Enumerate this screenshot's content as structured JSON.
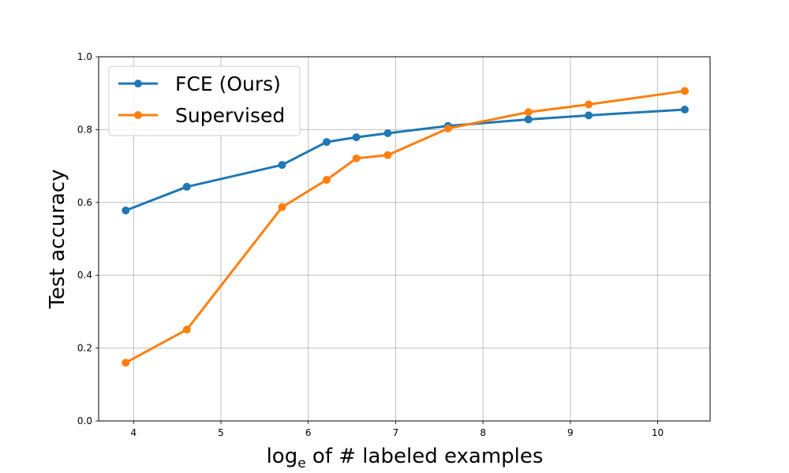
{
  "chart_data": {
    "type": "line",
    "title": "",
    "xlabel_main": "log",
    "xlabel_sub": "e",
    "xlabel_rest": " of # labeled examples",
    "ylabel": "Test accuracy",
    "xlim": [
      3.6,
      10.6
    ],
    "ylim": [
      0.0,
      1.0
    ],
    "xticks": [
      4,
      5,
      6,
      7,
      8,
      9,
      10
    ],
    "yticks": [
      0.0,
      0.2,
      0.4,
      0.6,
      0.8,
      1.0
    ],
    "xtick_labels": [
      "4",
      "5",
      "6",
      "7",
      "8",
      "9",
      "10"
    ],
    "ytick_labels": [
      "0.0",
      "0.2",
      "0.4",
      "0.6",
      "0.8",
      "1.0"
    ],
    "grid": true,
    "legend_position": "upper-left",
    "series": [
      {
        "name": "FCE (Ours)",
        "color": "#1f77b4",
        "x": [
          3.91,
          4.61,
          5.7,
          6.21,
          6.55,
          6.91,
          7.6,
          8.52,
          9.21,
          10.31
        ],
        "y": [
          0.578,
          0.643,
          0.703,
          0.766,
          0.779,
          0.79,
          0.81,
          0.828,
          0.839,
          0.855
        ]
      },
      {
        "name": "Supervised",
        "color": "#ff7f0e",
        "x": [
          3.91,
          4.61,
          5.7,
          6.21,
          6.55,
          6.91,
          7.6,
          8.52,
          9.21,
          10.31
        ],
        "y": [
          0.16,
          0.251,
          0.587,
          0.662,
          0.721,
          0.73,
          0.803,
          0.848,
          0.869,
          0.906
        ]
      }
    ]
  }
}
